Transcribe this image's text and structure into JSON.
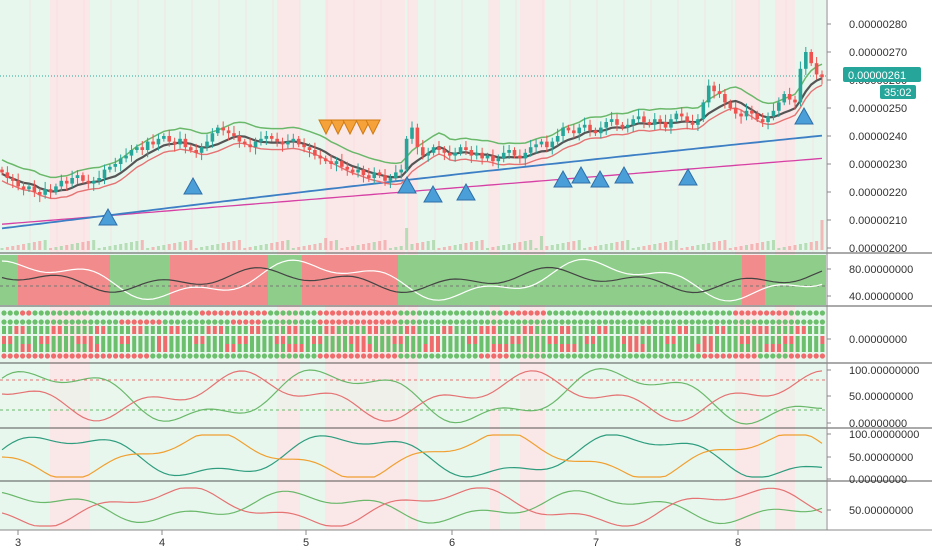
{
  "chart_data": {
    "type": "candlestick-multipane",
    "colors": {
      "bull": "#26a69a",
      "bear": "#ef5350",
      "bg_green": "#e8f7ee",
      "bg_red": "#fde4e6",
      "ma_blue": "#3d7fc4",
      "ma_magenta": "#d63fa4",
      "ma_gray": "#555555",
      "band_green": "#6ab86a",
      "band_red": "#e57373",
      "marker_blue": "#4a9fd8",
      "marker_orange": "#f5a23a",
      "price_tag": "#26a69a",
      "countdown_tag": "#26a69a"
    },
    "x_axis": {
      "ticks": [
        "3",
        "4",
        "5",
        "6",
        "7",
        "8"
      ]
    },
    "current_price": "0.00000261",
    "countdown": "35:02",
    "main_pane": {
      "y_ticks": [
        "0.00000280",
        "0.00000270",
        "0.00000260",
        "0.00000250",
        "0.00000240",
        "0.00000230",
        "0.00000220",
        "0.00000210",
        "0.00000200"
      ],
      "ylim": [
        2e-06,
        2.8e-06
      ]
    },
    "pane2": {
      "y_ticks": [
        "80.00000000",
        "40.00000000"
      ]
    },
    "pane3": {
      "y_ticks": [
        "0.00000000"
      ]
    },
    "pane4": {
      "y_ticks": [
        "100.00000000",
        "50.00000000",
        "0.00000000"
      ]
    },
    "pane5": {
      "y_ticks": [
        "100.00000000",
        "50.00000000",
        "0.00000000"
      ]
    },
    "pane6": {
      "y_ticks": [
        "50.00000000"
      ]
    },
    "close_series": [
      2.27,
      2.25,
      2.24,
      2.22,
      2.21,
      2.22,
      2.2,
      2.19,
      2.21,
      2.2,
      2.22,
      2.24,
      2.23,
      2.25,
      2.26,
      2.24,
      2.23,
      2.24,
      2.25,
      2.28,
      2.29,
      2.3,
      2.32,
      2.33,
      2.35,
      2.36,
      2.35,
      2.38,
      2.37,
      2.39,
      2.4,
      2.38,
      2.37,
      2.39,
      2.36,
      2.35,
      2.34,
      2.36,
      2.38,
      2.41,
      2.43,
      2.42,
      2.41,
      2.4,
      2.38,
      2.37,
      2.36,
      2.38,
      2.39,
      2.4,
      2.39,
      2.38,
      2.37,
      2.38,
      2.39,
      2.37,
      2.36,
      2.35,
      2.33,
      2.32,
      2.31,
      2.3,
      2.31,
      2.29,
      2.28,
      2.27,
      2.28,
      2.26,
      2.25,
      2.27,
      2.26,
      2.24,
      2.25,
      2.27,
      2.28,
      2.39,
      2.43,
      2.36,
      2.33,
      2.34,
      2.36,
      2.35,
      2.34,
      2.33,
      2.34,
      2.36,
      2.35,
      2.33,
      2.34,
      2.32,
      2.33,
      2.31,
      2.32,
      2.34,
      2.35,
      2.33,
      2.32,
      2.34,
      2.36,
      2.37,
      2.38,
      2.36,
      2.38,
      2.4,
      2.43,
      2.42,
      2.41,
      2.43,
      2.44,
      2.42,
      2.41,
      2.43,
      2.45,
      2.46,
      2.44,
      2.43,
      2.44,
      2.46,
      2.47,
      2.45,
      2.44,
      2.46,
      2.45,
      2.43,
      2.46,
      2.48,
      2.47,
      2.45,
      2.44,
      2.46,
      2.52,
      2.58,
      2.56,
      2.55,
      2.52,
      2.5,
      2.48,
      2.47,
      2.49,
      2.48,
      2.46,
      2.45,
      2.47,
      2.49,
      2.52,
      2.55,
      2.53,
      2.52,
      2.64,
      2.7,
      2.66,
      2.62,
      2.61
    ]
  }
}
